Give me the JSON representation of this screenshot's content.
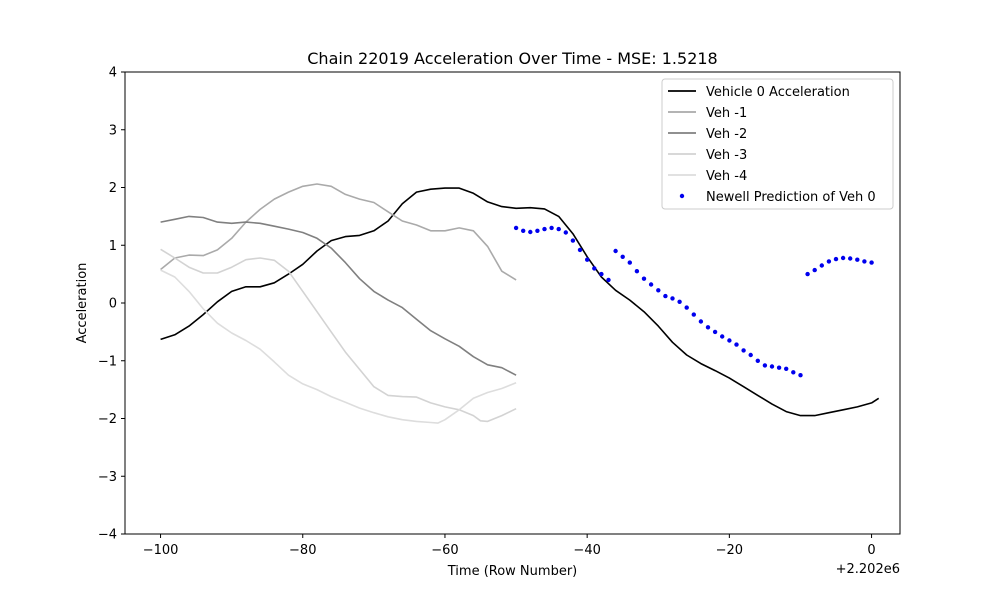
{
  "chart_data": {
    "type": "line",
    "title": "Chain 22019 Acceleration Over Time - MSE: 1.5218",
    "xlabel": "Time (Row Number)",
    "ylabel": "Acceleration",
    "x_offset_label": "+2.202e6",
    "xlim": [
      -105,
      4
    ],
    "ylim": [
      -4,
      4
    ],
    "x_ticks": [
      -100,
      -80,
      -60,
      -40,
      -20,
      0
    ],
    "x_tick_labels": [
      "−100",
      "−80",
      "−60",
      "−40",
      "−20",
      "0"
    ],
    "y_ticks": [
      -4,
      -3,
      -2,
      -1,
      0,
      1,
      2,
      3,
      4
    ],
    "y_tick_labels": [
      "−4",
      "−3",
      "−2",
      "−1",
      "0",
      "1",
      "2",
      "3",
      "4"
    ],
    "grid": false,
    "legend_position": "top-right",
    "series": [
      {
        "name": "Vehicle 0 Acceleration",
        "color": "#000000",
        "style": "line",
        "points": [
          [
            -100,
            -0.63
          ],
          [
            -98,
            -0.55
          ],
          [
            -96,
            -0.4
          ],
          [
            -94,
            -0.2
          ],
          [
            -92,
            0.02
          ],
          [
            -90,
            0.2
          ],
          [
            -88,
            0.28
          ],
          [
            -86,
            0.28
          ],
          [
            -84,
            0.35
          ],
          [
            -82,
            0.5
          ],
          [
            -80,
            0.67
          ],
          [
            -78,
            0.9
          ],
          [
            -76,
            1.08
          ],
          [
            -74,
            1.15
          ],
          [
            -72,
            1.17
          ],
          [
            -70,
            1.25
          ],
          [
            -68,
            1.42
          ],
          [
            -66,
            1.72
          ],
          [
            -64,
            1.92
          ],
          [
            -62,
            1.97
          ],
          [
            -60,
            1.99
          ],
          [
            -58,
            1.99
          ],
          [
            -56,
            1.9
          ],
          [
            -54,
            1.75
          ],
          [
            -52,
            1.67
          ],
          [
            -50,
            1.64
          ],
          [
            -48,
            1.65
          ],
          [
            -46,
            1.63
          ],
          [
            -44,
            1.5
          ],
          [
            -42,
            1.2
          ],
          [
            -40,
            0.8
          ],
          [
            -38,
            0.45
          ],
          [
            -36,
            0.22
          ],
          [
            -34,
            0.05
          ],
          [
            -32,
            -0.15
          ],
          [
            -30,
            -0.4
          ],
          [
            -28,
            -0.68
          ],
          [
            -26,
            -0.9
          ],
          [
            -24,
            -1.05
          ],
          [
            -22,
            -1.17
          ],
          [
            -20,
            -1.3
          ],
          [
            -18,
            -1.45
          ],
          [
            -16,
            -1.6
          ],
          [
            -14,
            -1.75
          ],
          [
            -12,
            -1.88
          ],
          [
            -10,
            -1.95
          ],
          [
            -8,
            -1.95
          ],
          [
            -6,
            -1.9
          ],
          [
            -4,
            -1.85
          ],
          [
            -2,
            -1.8
          ],
          [
            0,
            -1.73
          ],
          [
            1,
            -1.65
          ]
        ]
      },
      {
        "name": "Veh -1",
        "color": "#aaaaaa",
        "style": "line",
        "points": [
          [
            -100,
            0.58
          ],
          [
            -98,
            0.78
          ],
          [
            -96,
            0.83
          ],
          [
            -94,
            0.82
          ],
          [
            -92,
            0.92
          ],
          [
            -90,
            1.12
          ],
          [
            -88,
            1.4
          ],
          [
            -86,
            1.62
          ],
          [
            -84,
            1.8
          ],
          [
            -82,
            1.92
          ],
          [
            -80,
            2.02
          ],
          [
            -78,
            2.06
          ],
          [
            -76,
            2.02
          ],
          [
            -74,
            1.88
          ],
          [
            -72,
            1.8
          ],
          [
            -70,
            1.74
          ],
          [
            -68,
            1.58
          ],
          [
            -66,
            1.42
          ],
          [
            -64,
            1.35
          ],
          [
            -62,
            1.25
          ],
          [
            -60,
            1.25
          ],
          [
            -58,
            1.3
          ],
          [
            -56,
            1.25
          ],
          [
            -54,
            0.98
          ],
          [
            -52,
            0.55
          ],
          [
            -50,
            0.4
          ]
        ]
      },
      {
        "name": "Veh -2",
        "color": "#808080",
        "style": "line",
        "points": [
          [
            -100,
            1.4
          ],
          [
            -98,
            1.45
          ],
          [
            -96,
            1.5
          ],
          [
            -94,
            1.48
          ],
          [
            -92,
            1.4
          ],
          [
            -90,
            1.38
          ],
          [
            -88,
            1.4
          ],
          [
            -86,
            1.38
          ],
          [
            -84,
            1.33
          ],
          [
            -82,
            1.28
          ],
          [
            -80,
            1.22
          ],
          [
            -78,
            1.12
          ],
          [
            -76,
            0.95
          ],
          [
            -74,
            0.7
          ],
          [
            -72,
            0.42
          ],
          [
            -70,
            0.2
          ],
          [
            -68,
            0.05
          ],
          [
            -66,
            -0.08
          ],
          [
            -64,
            -0.28
          ],
          [
            -62,
            -0.48
          ],
          [
            -60,
            -0.62
          ],
          [
            -58,
            -0.75
          ],
          [
            -56,
            -0.93
          ],
          [
            -54,
            -1.07
          ],
          [
            -52,
            -1.12
          ],
          [
            -50,
            -1.25
          ]
        ]
      },
      {
        "name": "Veh -3",
        "color": "#d3d3d3",
        "style": "line",
        "points": [
          [
            -100,
            0.93
          ],
          [
            -98,
            0.78
          ],
          [
            -96,
            0.62
          ],
          [
            -94,
            0.52
          ],
          [
            -92,
            0.52
          ],
          [
            -90,
            0.62
          ],
          [
            -88,
            0.75
          ],
          [
            -86,
            0.78
          ],
          [
            -84,
            0.74
          ],
          [
            -82,
            0.55
          ],
          [
            -80,
            0.2
          ],
          [
            -78,
            -0.15
          ],
          [
            -76,
            -0.5
          ],
          [
            -74,
            -0.85
          ],
          [
            -72,
            -1.15
          ],
          [
            -70,
            -1.45
          ],
          [
            -68,
            -1.6
          ],
          [
            -66,
            -1.62
          ],
          [
            -64,
            -1.63
          ],
          [
            -62,
            -1.73
          ],
          [
            -60,
            -1.8
          ],
          [
            -58,
            -1.85
          ],
          [
            -56,
            -1.95
          ],
          [
            -55,
            -2.04
          ],
          [
            -54,
            -2.05
          ],
          [
            -52,
            -1.95
          ],
          [
            -50,
            -1.83
          ]
        ]
      },
      {
        "name": "Veh -4",
        "color": "#dddddd",
        "style": "line",
        "points": [
          [
            -100,
            0.57
          ],
          [
            -98,
            0.45
          ],
          [
            -96,
            0.2
          ],
          [
            -94,
            -0.1
          ],
          [
            -92,
            -0.35
          ],
          [
            -90,
            -0.52
          ],
          [
            -88,
            -0.65
          ],
          [
            -86,
            -0.8
          ],
          [
            -84,
            -1.02
          ],
          [
            -82,
            -1.25
          ],
          [
            -80,
            -1.4
          ],
          [
            -78,
            -1.5
          ],
          [
            -76,
            -1.62
          ],
          [
            -74,
            -1.72
          ],
          [
            -72,
            -1.82
          ],
          [
            -70,
            -1.9
          ],
          [
            -68,
            -1.97
          ],
          [
            -66,
            -2.02
          ],
          [
            -64,
            -2.05
          ],
          [
            -62,
            -2.07
          ],
          [
            -61,
            -2.08
          ],
          [
            -60,
            -2.02
          ],
          [
            -58,
            -1.85
          ],
          [
            -56,
            -1.65
          ],
          [
            -54,
            -1.55
          ],
          [
            -52,
            -1.48
          ],
          [
            -50,
            -1.38
          ]
        ]
      },
      {
        "name": "Newell Prediction of Veh 0",
        "color": "#0000ee",
        "style": "dots",
        "points": [
          [
            -50,
            1.3
          ],
          [
            -49,
            1.25
          ],
          [
            -48,
            1.23
          ],
          [
            -47,
            1.25
          ],
          [
            -46,
            1.28
          ],
          [
            -45,
            1.3
          ],
          [
            -44,
            1.28
          ],
          [
            -43,
            1.22
          ],
          [
            -42,
            1.08
          ],
          [
            -41,
            0.92
          ],
          [
            -40,
            0.75
          ],
          [
            -39,
            0.6
          ],
          [
            -38,
            0.5
          ],
          [
            -37,
            0.4
          ],
          [
            -36,
            0.9
          ],
          [
            -35,
            0.8
          ],
          [
            -34,
            0.7
          ],
          [
            -33,
            0.55
          ],
          [
            -32,
            0.42
          ],
          [
            -31,
            0.32
          ],
          [
            -30,
            0.22
          ],
          [
            -29,
            0.12
          ],
          [
            -28,
            0.08
          ],
          [
            -27,
            0.02
          ],
          [
            -26,
            -0.08
          ],
          [
            -25,
            -0.2
          ],
          [
            -24,
            -0.32
          ],
          [
            -23,
            -0.42
          ],
          [
            -22,
            -0.5
          ],
          [
            -21,
            -0.58
          ],
          [
            -20,
            -0.65
          ],
          [
            -19,
            -0.72
          ],
          [
            -18,
            -0.82
          ],
          [
            -17,
            -0.9
          ],
          [
            -16,
            -1.0
          ],
          [
            -15,
            -1.08
          ],
          [
            -14,
            -1.1
          ],
          [
            -13,
            -1.12
          ],
          [
            -12,
            -1.14
          ],
          [
            -11,
            -1.2
          ],
          [
            -10,
            -1.25
          ],
          [
            -9,
            0.5
          ],
          [
            -8,
            0.57
          ],
          [
            -7,
            0.65
          ],
          [
            -6,
            0.72
          ],
          [
            -5,
            0.76
          ],
          [
            -4,
            0.78
          ],
          [
            -3,
            0.77
          ],
          [
            -2,
            0.75
          ],
          [
            -1,
            0.72
          ],
          [
            0,
            0.7
          ]
        ]
      }
    ]
  }
}
